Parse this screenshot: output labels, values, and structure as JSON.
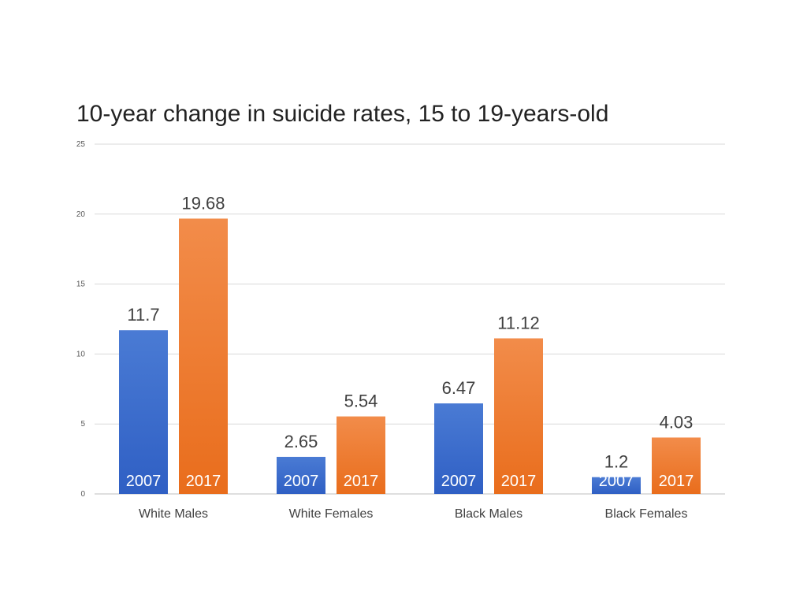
{
  "chart_data": {
    "type": "bar",
    "title": "10-year change in suicide rates, 15 to 19-years-old",
    "xlabel": "",
    "ylabel": "",
    "ylim": [
      0,
      25
    ],
    "yticks": [
      "0",
      "5",
      "10",
      "15",
      "20",
      "25"
    ],
    "grid": true,
    "legend": "none",
    "categories": [
      "White Males",
      "White Females",
      "Black Males",
      "Black Females"
    ],
    "series": [
      {
        "name": "2007",
        "color": "#3f6dcc",
        "values": [
          11.7,
          2.65,
          6.47,
          1.2
        ],
        "labels": [
          "11.7",
          "2.65",
          "6.47",
          "1.2"
        ]
      },
      {
        "name": "2017",
        "color": "#ef7a2a",
        "values": [
          19.68,
          5.54,
          11.12,
          4.03
        ],
        "labels": [
          "19.68",
          "5.54",
          "11.12",
          "4.03"
        ]
      }
    ]
  }
}
